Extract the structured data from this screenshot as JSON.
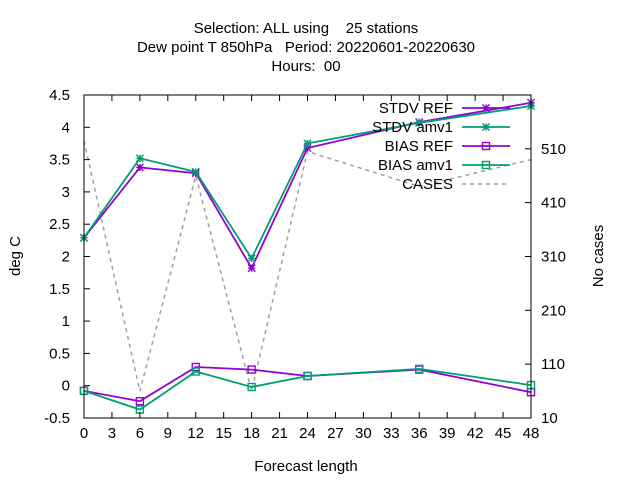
{
  "chart_data": {
    "type": "line",
    "title_lines": [
      "Selection: ALL using    25 stations",
      "Dew point T 850hPa   Period: 20220601-20220630",
      "Hours:  00"
    ],
    "xlabel": "Forecast length",
    "ylabel": "deg C",
    "y2label": "No cases",
    "xlim": [
      0,
      48
    ],
    "ylim": [
      -0.5,
      4.5
    ],
    "y2lim": [
      10,
      610
    ],
    "x_ticks": [
      0,
      3,
      6,
      9,
      12,
      15,
      18,
      21,
      24,
      27,
      30,
      33,
      36,
      39,
      42,
      45,
      48
    ],
    "y_ticks": [
      "-0.5",
      "0",
      "0.5",
      "1",
      "1.5",
      "2",
      "2.5",
      "3",
      "3.5",
      "4",
      "4.5"
    ],
    "y2_ticks": [
      10,
      110,
      210,
      310,
      410,
      510
    ],
    "legend_position": "top-right",
    "grid": false,
    "series": [
      {
        "name": "STDV REF",
        "color": "#9400d3",
        "axis": "y",
        "marker": "star",
        "x": [
          0,
          6,
          12,
          18,
          24,
          36,
          48
        ],
        "y": [
          2.29,
          3.38,
          3.29,
          1.82,
          3.68,
          4.08,
          4.38
        ]
      },
      {
        "name": "STDV amv1",
        "color": "#009e73",
        "axis": "y",
        "marker": "star",
        "x": [
          0,
          6,
          12,
          18,
          24,
          36,
          48
        ],
        "y": [
          2.29,
          3.52,
          3.31,
          1.97,
          3.75,
          4.07,
          4.33
        ]
      },
      {
        "name": "BIAS REF",
        "color": "#9400d3",
        "axis": "y",
        "marker": "square",
        "x": [
          0,
          6,
          12,
          18,
          24,
          36,
          48
        ],
        "y": [
          -0.08,
          -0.24,
          0.29,
          0.25,
          0.15,
          0.25,
          -0.1
        ]
      },
      {
        "name": "BIAS amv1",
        "color": "#009e73",
        "axis": "y",
        "marker": "square",
        "x": [
          0,
          6,
          12,
          18,
          24,
          36,
          48
        ],
        "y": [
          -0.08,
          -0.37,
          0.22,
          -0.02,
          0.15,
          0.26,
          0.01
        ]
      },
      {
        "name": "CASES",
        "color": "#a0a0a0",
        "axis": "y2",
        "marker": "none",
        "dash": true,
        "x": [
          0,
          6,
          12,
          18,
          24,
          36,
          48
        ],
        "y": [
          525,
          60,
          460,
          60,
          505,
          440,
          490
        ]
      }
    ]
  }
}
